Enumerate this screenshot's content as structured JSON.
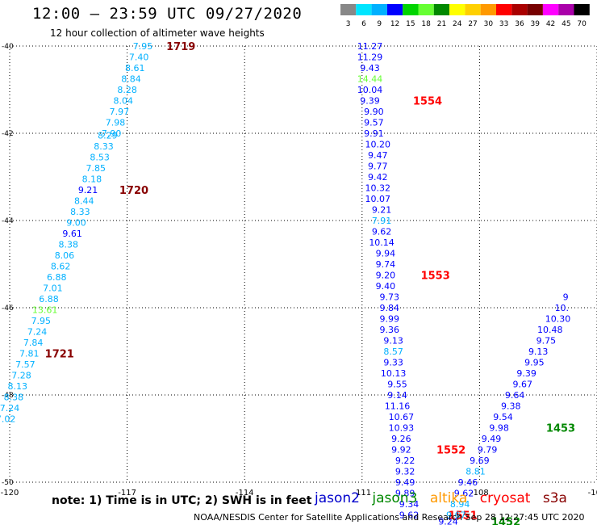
{
  "header": {
    "title": "12:00 – 23:59 UTC 09/27/2020",
    "subtitle": "12 hour collection of altimeter wave heights"
  },
  "colorbar": {
    "unit": "(ft)",
    "levels": [
      "3",
      "6",
      "9",
      "12",
      "15",
      "18",
      "21",
      "24",
      "27",
      "30",
      "33",
      "36",
      "39",
      "42",
      "45",
      "70"
    ],
    "colors": [
      "#888888",
      "#00e5ff",
      "#00b0ff",
      "#0000ff",
      "#00d400",
      "#66ff33",
      "#008800",
      "#ffff00",
      "#ffd000",
      "#ff9900",
      "#ff0000",
      "#aa0000",
      "#770000",
      "#ff00ff",
      "#aa00aa",
      "#000000"
    ]
  },
  "footer": {
    "note": "note:  1) Time is in UTC;  2) SWH is in feet",
    "credit": "NOAA/NESDIS Center for Satellite Applications and Research    Sep 28 12:27:45 UTC 2020"
  },
  "legend": [
    {
      "name": "jason2",
      "color": "#0000cc"
    },
    {
      "name": "jason3",
      "color": "#008800"
    },
    {
      "name": "altika",
      "color": "#ff9900"
    },
    {
      "name": "cryosat",
      "color": "#ff0000"
    },
    {
      "name": "s3a",
      "color": "#880000"
    }
  ],
  "chart_data": {
    "type": "scatter",
    "title": "12:00 – 23:59 UTC 09/27/2020",
    "x_ticks": [
      "-120",
      "-117",
      "-114",
      "-111",
      "-108",
      "-105"
    ],
    "y_ticks": [
      "-40",
      "-42",
      "-44",
      "-46",
      "-48",
      "-50"
    ],
    "xlim": [
      -120,
      -105
    ],
    "ylim": [
      -50,
      -40
    ],
    "grid": true,
    "series": [
      {
        "name": "track1",
        "colors_by_point": true,
        "points": [
          {
            "lon": -116.6,
            "lat": -40.0,
            "v": "7.95",
            "c": "#00b0ff"
          },
          {
            "lon": -116.7,
            "lat": -40.25,
            "v": "7.40",
            "c": "#00b0ff"
          },
          {
            "lon": -116.8,
            "lat": -40.5,
            "v": "8.61",
            "c": "#00b0ff"
          },
          {
            "lon": -116.9,
            "lat": -40.75,
            "v": "8.84",
            "c": "#00b0ff"
          },
          {
            "lon": -117.0,
            "lat": -41.0,
            "v": "8.28",
            "c": "#00b0ff"
          },
          {
            "lon": -117.1,
            "lat": -41.25,
            "v": "8.04",
            "c": "#00b0ff"
          },
          {
            "lon": -117.2,
            "lat": -41.5,
            "v": "7.97",
            "c": "#00b0ff"
          },
          {
            "lon": -117.3,
            "lat": -41.75,
            "v": "7.98",
            "c": "#00b0ff"
          },
          {
            "lon": -117.4,
            "lat": -42.0,
            "v": "7.90",
            "c": "#00b0ff"
          },
          {
            "lon": -117.5,
            "lat": -42.05,
            "v": "8.29",
            "c": "#00b0ff"
          },
          {
            "lon": -117.6,
            "lat": -42.3,
            "v": "8.33",
            "c": "#00b0ff"
          },
          {
            "lon": -117.7,
            "lat": -42.55,
            "v": "8.53",
            "c": "#00b0ff"
          },
          {
            "lon": -117.8,
            "lat": -42.8,
            "v": "7.85",
            "c": "#00b0ff"
          },
          {
            "lon": -117.9,
            "lat": -43.05,
            "v": "8.18",
            "c": "#00b0ff"
          },
          {
            "lon": -118.0,
            "lat": -43.3,
            "v": "9.21",
            "c": "#0000ff"
          },
          {
            "lon": -118.1,
            "lat": -43.55,
            "v": "8.44",
            "c": "#00b0ff"
          },
          {
            "lon": -118.2,
            "lat": -43.8,
            "v": "8.33",
            "c": "#00b0ff"
          },
          {
            "lon": -118.3,
            "lat": -44.05,
            "v": "9.00",
            "c": "#00b0ff"
          },
          {
            "lon": -118.4,
            "lat": -44.3,
            "v": "9.61",
            "c": "#0000ff"
          },
          {
            "lon": -118.5,
            "lat": -44.55,
            "v": "8.38",
            "c": "#00b0ff"
          },
          {
            "lon": -118.6,
            "lat": -44.8,
            "v": "8.06",
            "c": "#00b0ff"
          },
          {
            "lon": -118.7,
            "lat": -45.05,
            "v": "8.62",
            "c": "#00b0ff"
          },
          {
            "lon": -118.8,
            "lat": -45.3,
            "v": "6.88",
            "c": "#00b0ff"
          },
          {
            "lon": -118.9,
            "lat": -45.55,
            "v": "7.01",
            "c": "#00b0ff"
          },
          {
            "lon": -119.0,
            "lat": -45.8,
            "v": "6.88",
            "c": "#00b0ff"
          },
          {
            "lon": -119.1,
            "lat": -46.05,
            "v": "13.61",
            "c": "#66ff33"
          },
          {
            "lon": -119.2,
            "lat": -46.3,
            "v": "7.95",
            "c": "#00b0ff"
          },
          {
            "lon": -119.3,
            "lat": -46.55,
            "v": "7.24",
            "c": "#00b0ff"
          },
          {
            "lon": -119.4,
            "lat": -46.8,
            "v": "7.84",
            "c": "#00b0ff"
          },
          {
            "lon": -119.5,
            "lat": -47.05,
            "v": "7.81",
            "c": "#00b0ff"
          },
          {
            "lon": -119.6,
            "lat": -47.3,
            "v": "7.57",
            "c": "#00b0ff"
          },
          {
            "lon": -119.7,
            "lat": -47.55,
            "v": "7.28",
            "c": "#00b0ff"
          },
          {
            "lon": -119.8,
            "lat": -47.8,
            "v": "8.13",
            "c": "#00b0ff"
          },
          {
            "lon": -119.9,
            "lat": -48.05,
            "v": "8.38",
            "c": "#00b0ff"
          },
          {
            "lon": -120.0,
            "lat": -48.3,
            "v": "7.24",
            "c": "#00b0ff"
          },
          {
            "lon": -120.1,
            "lat": -48.55,
            "v": "7.02",
            "c": "#00b0ff"
          }
        ],
        "times": [
          {
            "lon": -116.0,
            "lat": -40.0,
            "t": "1719"
          },
          {
            "lon": -117.2,
            "lat": -43.3,
            "t": "1720"
          },
          {
            "lon": -119.1,
            "lat": -47.05,
            "t": "1721"
          }
        ]
      },
      {
        "name": "track2",
        "colors_by_point": true,
        "points": [
          {
            "lon": -110.8,
            "lat": -40.0,
            "v": "11.27",
            "c": "#0000ff"
          },
          {
            "lon": -110.8,
            "lat": -40.25,
            "v": "11.29",
            "c": "#0000ff"
          },
          {
            "lon": -110.8,
            "lat": -40.5,
            "v": "9.43",
            "c": "#0000ff"
          },
          {
            "lon": -110.8,
            "lat": -40.75,
            "v": "14.44",
            "c": "#66ff33"
          },
          {
            "lon": -110.8,
            "lat": -41.0,
            "v": "10.04",
            "c": "#0000ff"
          },
          {
            "lon": -110.8,
            "lat": -41.25,
            "v": "9.39",
            "c": "#0000ff"
          },
          {
            "lon": -110.7,
            "lat": -41.5,
            "v": "9.90",
            "c": "#0000ff"
          },
          {
            "lon": -110.7,
            "lat": -41.75,
            "v": "9.57",
            "c": "#0000ff"
          },
          {
            "lon": -110.7,
            "lat": -42.0,
            "v": "9.91",
            "c": "#0000ff"
          },
          {
            "lon": -110.6,
            "lat": -42.25,
            "v": "10.20",
            "c": "#0000ff"
          },
          {
            "lon": -110.6,
            "lat": -42.5,
            "v": "9.47",
            "c": "#0000ff"
          },
          {
            "lon": -110.6,
            "lat": -42.75,
            "v": "9.77",
            "c": "#0000ff"
          },
          {
            "lon": -110.6,
            "lat": -43.0,
            "v": "9.42",
            "c": "#0000ff"
          },
          {
            "lon": -110.6,
            "lat": -43.25,
            "v": "10.32",
            "c": "#0000ff"
          },
          {
            "lon": -110.6,
            "lat": -43.5,
            "v": "10.07",
            "c": "#0000ff"
          },
          {
            "lon": -110.5,
            "lat": -43.75,
            "v": "9.21",
            "c": "#0000ff"
          },
          {
            "lon": -110.5,
            "lat": -44.0,
            "v": "7.91",
            "c": "#00b0ff"
          },
          {
            "lon": -110.5,
            "lat": -44.25,
            "v": "9.62",
            "c": "#0000ff"
          },
          {
            "lon": -110.5,
            "lat": -44.5,
            "v": "10.14",
            "c": "#0000ff"
          },
          {
            "lon": -110.4,
            "lat": -44.75,
            "v": "9.94",
            "c": "#0000ff"
          },
          {
            "lon": -110.4,
            "lat": -45.0,
            "v": "9.74",
            "c": "#0000ff"
          },
          {
            "lon": -110.4,
            "lat": -45.25,
            "v": "9.20",
            "c": "#0000ff"
          },
          {
            "lon": -110.4,
            "lat": -45.5,
            "v": "9.40",
            "c": "#0000ff"
          },
          {
            "lon": -110.3,
            "lat": -45.75,
            "v": "9.73",
            "c": "#0000ff"
          },
          {
            "lon": -110.3,
            "lat": -46.0,
            "v": "9.84",
            "c": "#0000ff"
          },
          {
            "lon": -110.3,
            "lat": -46.25,
            "v": "9.99",
            "c": "#0000ff"
          },
          {
            "lon": -110.3,
            "lat": -46.5,
            "v": "9.36",
            "c": "#0000ff"
          },
          {
            "lon": -110.2,
            "lat": -46.75,
            "v": "9.13",
            "c": "#0000ff"
          },
          {
            "lon": -110.2,
            "lat": -47.0,
            "v": "8.57",
            "c": "#00b0ff"
          },
          {
            "lon": -110.2,
            "lat": -47.25,
            "v": "9.33",
            "c": "#0000ff"
          },
          {
            "lon": -110.2,
            "lat": -47.5,
            "v": "10.13",
            "c": "#0000ff"
          },
          {
            "lon": -110.1,
            "lat": -47.75,
            "v": "9.55",
            "c": "#0000ff"
          },
          {
            "lon": -110.1,
            "lat": -48.0,
            "v": "9.14",
            "c": "#0000ff"
          },
          {
            "lon": -110.1,
            "lat": -48.25,
            "v": "11.16",
            "c": "#0000ff"
          },
          {
            "lon": -110.0,
            "lat": -48.5,
            "v": "10.67",
            "c": "#0000ff"
          },
          {
            "lon": -110.0,
            "lat": -48.75,
            "v": "10.93",
            "c": "#0000ff"
          },
          {
            "lon": -110.0,
            "lat": -49.0,
            "v": "9.26",
            "c": "#0000ff"
          },
          {
            "lon": -110.0,
            "lat": -49.25,
            "v": "9.92",
            "c": "#0000ff"
          },
          {
            "lon": -109.9,
            "lat": -49.5,
            "v": "9.22",
            "c": "#0000ff"
          },
          {
            "lon": -109.9,
            "lat": -49.75,
            "v": "9.32",
            "c": "#0000ff"
          },
          {
            "lon": -109.9,
            "lat": -50.0,
            "v": "9.49",
            "c": "#0000ff"
          },
          {
            "lon": -109.9,
            "lat": -50.25,
            "v": "9.89",
            "c": "#0000ff"
          },
          {
            "lon": -109.8,
            "lat": -50.5,
            "v": "9.34",
            "c": "#0000ff"
          },
          {
            "lon": -109.8,
            "lat": -50.75,
            "v": "9.62",
            "c": "#0000ff"
          }
        ],
        "times": [
          {
            "lon": -109.7,
            "lat": -41.25,
            "t": "1554"
          },
          {
            "lon": -109.5,
            "lat": -45.25,
            "t": "1553"
          },
          {
            "lon": -109.1,
            "lat": -49.25,
            "t": "1552"
          },
          {
            "lon": -108.8,
            "lat": -50.75,
            "t": "1551"
          }
        ]
      },
      {
        "name": "track3",
        "colors_by_point": true,
        "points": [
          {
            "lon": -108.8,
            "lat": -50.9,
            "v": "9.24",
            "c": "#0000ff"
          },
          {
            "lon": -108.6,
            "lat": -50.75,
            "v": "9.67",
            "c": "#00b0ff"
          },
          {
            "lon": -108.5,
            "lat": -50.5,
            "v": "8.94",
            "c": "#00b0ff"
          },
          {
            "lon": -108.4,
            "lat": -50.25,
            "v": "9.62",
            "c": "#0000ff"
          },
          {
            "lon": -108.3,
            "lat": -50.0,
            "v": "9.46",
            "c": "#0000ff"
          },
          {
            "lon": -108.1,
            "lat": -49.75,
            "v": "8.81",
            "c": "#00b0ff"
          },
          {
            "lon": -108.0,
            "lat": -49.5,
            "v": "9.69",
            "c": "#0000ff"
          },
          {
            "lon": -107.8,
            "lat": -49.25,
            "v": "9.79",
            "c": "#0000ff"
          },
          {
            "lon": -107.7,
            "lat": -49.0,
            "v": "9.49",
            "c": "#0000ff"
          },
          {
            "lon": -107.5,
            "lat": -48.75,
            "v": "9.98",
            "c": "#0000ff"
          },
          {
            "lon": -107.4,
            "lat": -48.5,
            "v": "9.54",
            "c": "#0000ff"
          },
          {
            "lon": -107.2,
            "lat": -48.25,
            "v": "9.38",
            "c": "#0000ff"
          },
          {
            "lon": -107.1,
            "lat": -48.0,
            "v": "9.64",
            "c": "#0000ff"
          },
          {
            "lon": -106.9,
            "lat": -47.75,
            "v": "9.67",
            "c": "#0000ff"
          },
          {
            "lon": -106.8,
            "lat": -47.5,
            "v": "9.39",
            "c": "#0000ff"
          },
          {
            "lon": -106.6,
            "lat": -47.25,
            "v": "9.95",
            "c": "#0000ff"
          },
          {
            "lon": -106.5,
            "lat": -47.0,
            "v": "9.13",
            "c": "#0000ff"
          },
          {
            "lon": -106.3,
            "lat": -46.75,
            "v": "9.75",
            "c": "#0000ff"
          },
          {
            "lon": -106.2,
            "lat": -46.5,
            "v": "10.48",
            "c": "#0000ff"
          },
          {
            "lon": -106.0,
            "lat": -46.25,
            "v": "10.30",
            "c": "#0000ff"
          },
          {
            "lon": -105.9,
            "lat": -46.0,
            "v": "10.",
            "c": "#0000ff"
          },
          {
            "lon": -105.8,
            "lat": -45.75,
            "v": "9",
            "c": "#0000ff"
          }
        ],
        "times": [
          {
            "lon": -107.7,
            "lat": -50.9,
            "t": "1452"
          },
          {
            "lon": -106.3,
            "lat": -48.75,
            "t": "1453"
          }
        ]
      }
    ]
  }
}
